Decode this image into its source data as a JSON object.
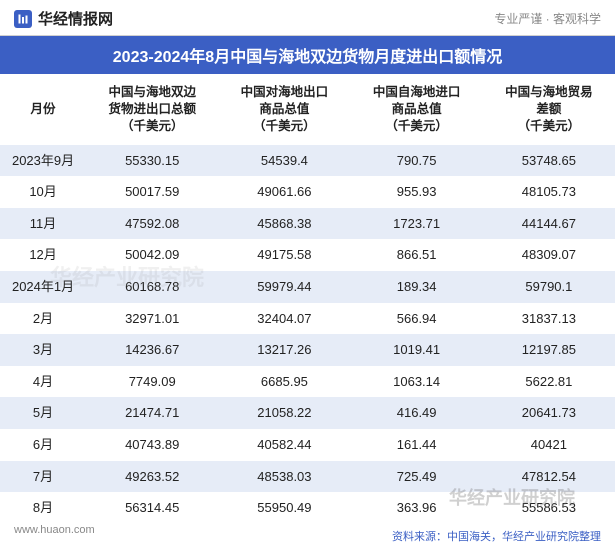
{
  "header": {
    "logo_text": "华经情报网",
    "right_text": "专业严谨 · 客观科学"
  },
  "title": "2023-2024年8月中国与海地双边货物月度进出口额情况",
  "table": {
    "columns": [
      "月份",
      "中国与海地双边\n货物进出口总额\n（千美元）",
      "中国对海地出口\n商品总值\n（千美元）",
      "中国自海地进口\n商品总值\n（千美元）",
      "中国与海地贸易\n差额\n（千美元）"
    ],
    "rows": [
      [
        "2023年9月",
        "55330.15",
        "54539.4",
        "790.75",
        "53748.65"
      ],
      [
        "10月",
        "50017.59",
        "49061.66",
        "955.93",
        "48105.73"
      ],
      [
        "11月",
        "47592.08",
        "45868.38",
        "1723.71",
        "44144.67"
      ],
      [
        "12月",
        "50042.09",
        "49175.58",
        "866.51",
        "48309.07"
      ],
      [
        "2024年1月",
        "60168.78",
        "59979.44",
        "189.34",
        "59790.1"
      ],
      [
        "2月",
        "32971.01",
        "32404.07",
        "566.94",
        "31837.13"
      ],
      [
        "3月",
        "14236.67",
        "13217.26",
        "1019.41",
        "12197.85"
      ],
      [
        "4月",
        "7749.09",
        "6685.95",
        "1063.14",
        "5622.81"
      ],
      [
        "5月",
        "21474.71",
        "21058.22",
        "416.49",
        "20641.73"
      ],
      [
        "6月",
        "40743.89",
        "40582.44",
        "161.44",
        "40421"
      ],
      [
        "7月",
        "49263.52",
        "48538.03",
        "725.49",
        "47812.54"
      ],
      [
        "8月",
        "56314.45",
        "55950.49",
        "363.96",
        "55586.53"
      ]
    ]
  },
  "footer": "资料来源：中国海关，华经产业研究院整理",
  "url": "www.huaon.com",
  "watermark": "华经产业研究院",
  "styling": {
    "title_bg": "#3b5fc4",
    "title_color": "#ffffff",
    "row_odd_bg": "#e6ecf7",
    "row_even_bg": "#ffffff",
    "text_color": "#222222",
    "footer_color": "#3b5fc4",
    "header_right_color": "#888888"
  }
}
